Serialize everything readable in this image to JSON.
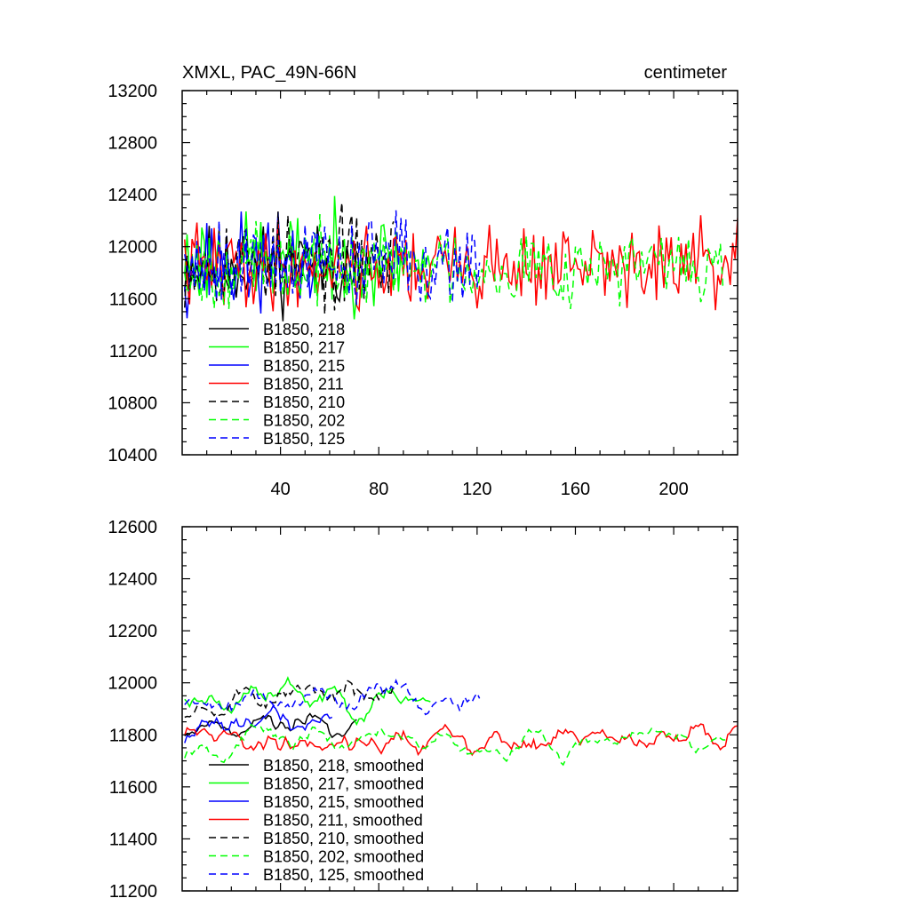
{
  "chart_data": [
    {
      "type": "line",
      "title": "XMXL, PAC_49N-66N",
      "units": "centimeter",
      "xlim": [
        0,
        226
      ],
      "ylim": [
        10400,
        13200
      ],
      "x_ticks": [
        40,
        80,
        120,
        160,
        200
      ],
      "x_tick_labels": [
        "40",
        "80",
        "120",
        "160",
        "200"
      ],
      "y_ticks": [
        10400,
        10800,
        11200,
        11600,
        12000,
        12400,
        12800,
        13200
      ],
      "y_tick_labels": [
        "10400",
        "10800",
        "11200",
        "11600",
        "12000",
        "12400",
        "12800",
        "13200"
      ],
      "legend": "bottom-left",
      "series": [
        {
          "name": "B1850, 218",
          "color": "#000000",
          "dash": "solid",
          "length": 71,
          "mean": 11850,
          "amp": 290,
          "seed": 11
        },
        {
          "name": "B1850, 217",
          "color": "#00ff00",
          "dash": "solid",
          "length": 101,
          "mean": 11900,
          "amp": 330,
          "seed": 23
        },
        {
          "name": "B1850, 215",
          "color": "#0000ff",
          "dash": "solid",
          "length": 61,
          "mean": 11860,
          "amp": 340,
          "seed": 37
        },
        {
          "name": "B1850, 211",
          "color": "#ff0000",
          "dash": "solid",
          "length": 226,
          "mean": 11850,
          "amp": 300,
          "seed": 41
        },
        {
          "name": "B1850, 210",
          "color": "#000000",
          "dash": "dashed",
          "length": 86,
          "mean": 11900,
          "amp": 330,
          "seed": 53
        },
        {
          "name": "B1850, 202",
          "color": "#00ff00",
          "dash": "dashed",
          "length": 221,
          "mean": 11850,
          "amp": 280,
          "seed": 67
        },
        {
          "name": "B1850, 125",
          "color": "#0000ff",
          "dash": "dashed",
          "length": 121,
          "mean": 11900,
          "amp": 320,
          "seed": 79
        }
      ]
    },
    {
      "type": "line",
      "title": "",
      "xlim": [
        0,
        226
      ],
      "ylim": [
        11200,
        12600
      ],
      "x_ticks": [
        40,
        80,
        120,
        160,
        200
      ],
      "x_tick_labels": [],
      "y_ticks": [
        11200,
        11400,
        11600,
        11800,
        12000,
        12200,
        12400,
        12600
      ],
      "y_tick_labels": [
        "11200",
        "11400",
        "11600",
        "11800",
        "12000",
        "12200",
        "12400",
        "12600"
      ],
      "legend": "bottom-left",
      "series": [
        {
          "name": "B1850, 218, smoothed",
          "color": "#000000",
          "dash": "solid",
          "length": 71,
          "mean": 11850,
          "amp": 160,
          "seed": 11
        },
        {
          "name": "B1850, 217, smoothed",
          "color": "#00ff00",
          "dash": "solid",
          "length": 101,
          "mean": 11950,
          "amp": 180,
          "seed": 23
        },
        {
          "name": "B1850, 215, smoothed",
          "color": "#0000ff",
          "dash": "solid",
          "length": 61,
          "mean": 11850,
          "amp": 170,
          "seed": 37
        },
        {
          "name": "B1850, 211, smoothed",
          "color": "#ff0000",
          "dash": "solid",
          "length": 226,
          "mean": 11780,
          "amp": 170,
          "seed": 41
        },
        {
          "name": "B1850, 210, smoothed",
          "color": "#000000",
          "dash": "dashed",
          "length": 86,
          "mean": 11950,
          "amp": 170,
          "seed": 53
        },
        {
          "name": "B1850, 202, smoothed",
          "color": "#00ff00",
          "dash": "dashed",
          "length": 221,
          "mean": 11780,
          "amp": 150,
          "seed": 67
        },
        {
          "name": "B1850, 125, smoothed",
          "color": "#0000ff",
          "dash": "dashed",
          "length": 121,
          "mean": 11950,
          "amp": 170,
          "seed": 79
        }
      ]
    }
  ]
}
